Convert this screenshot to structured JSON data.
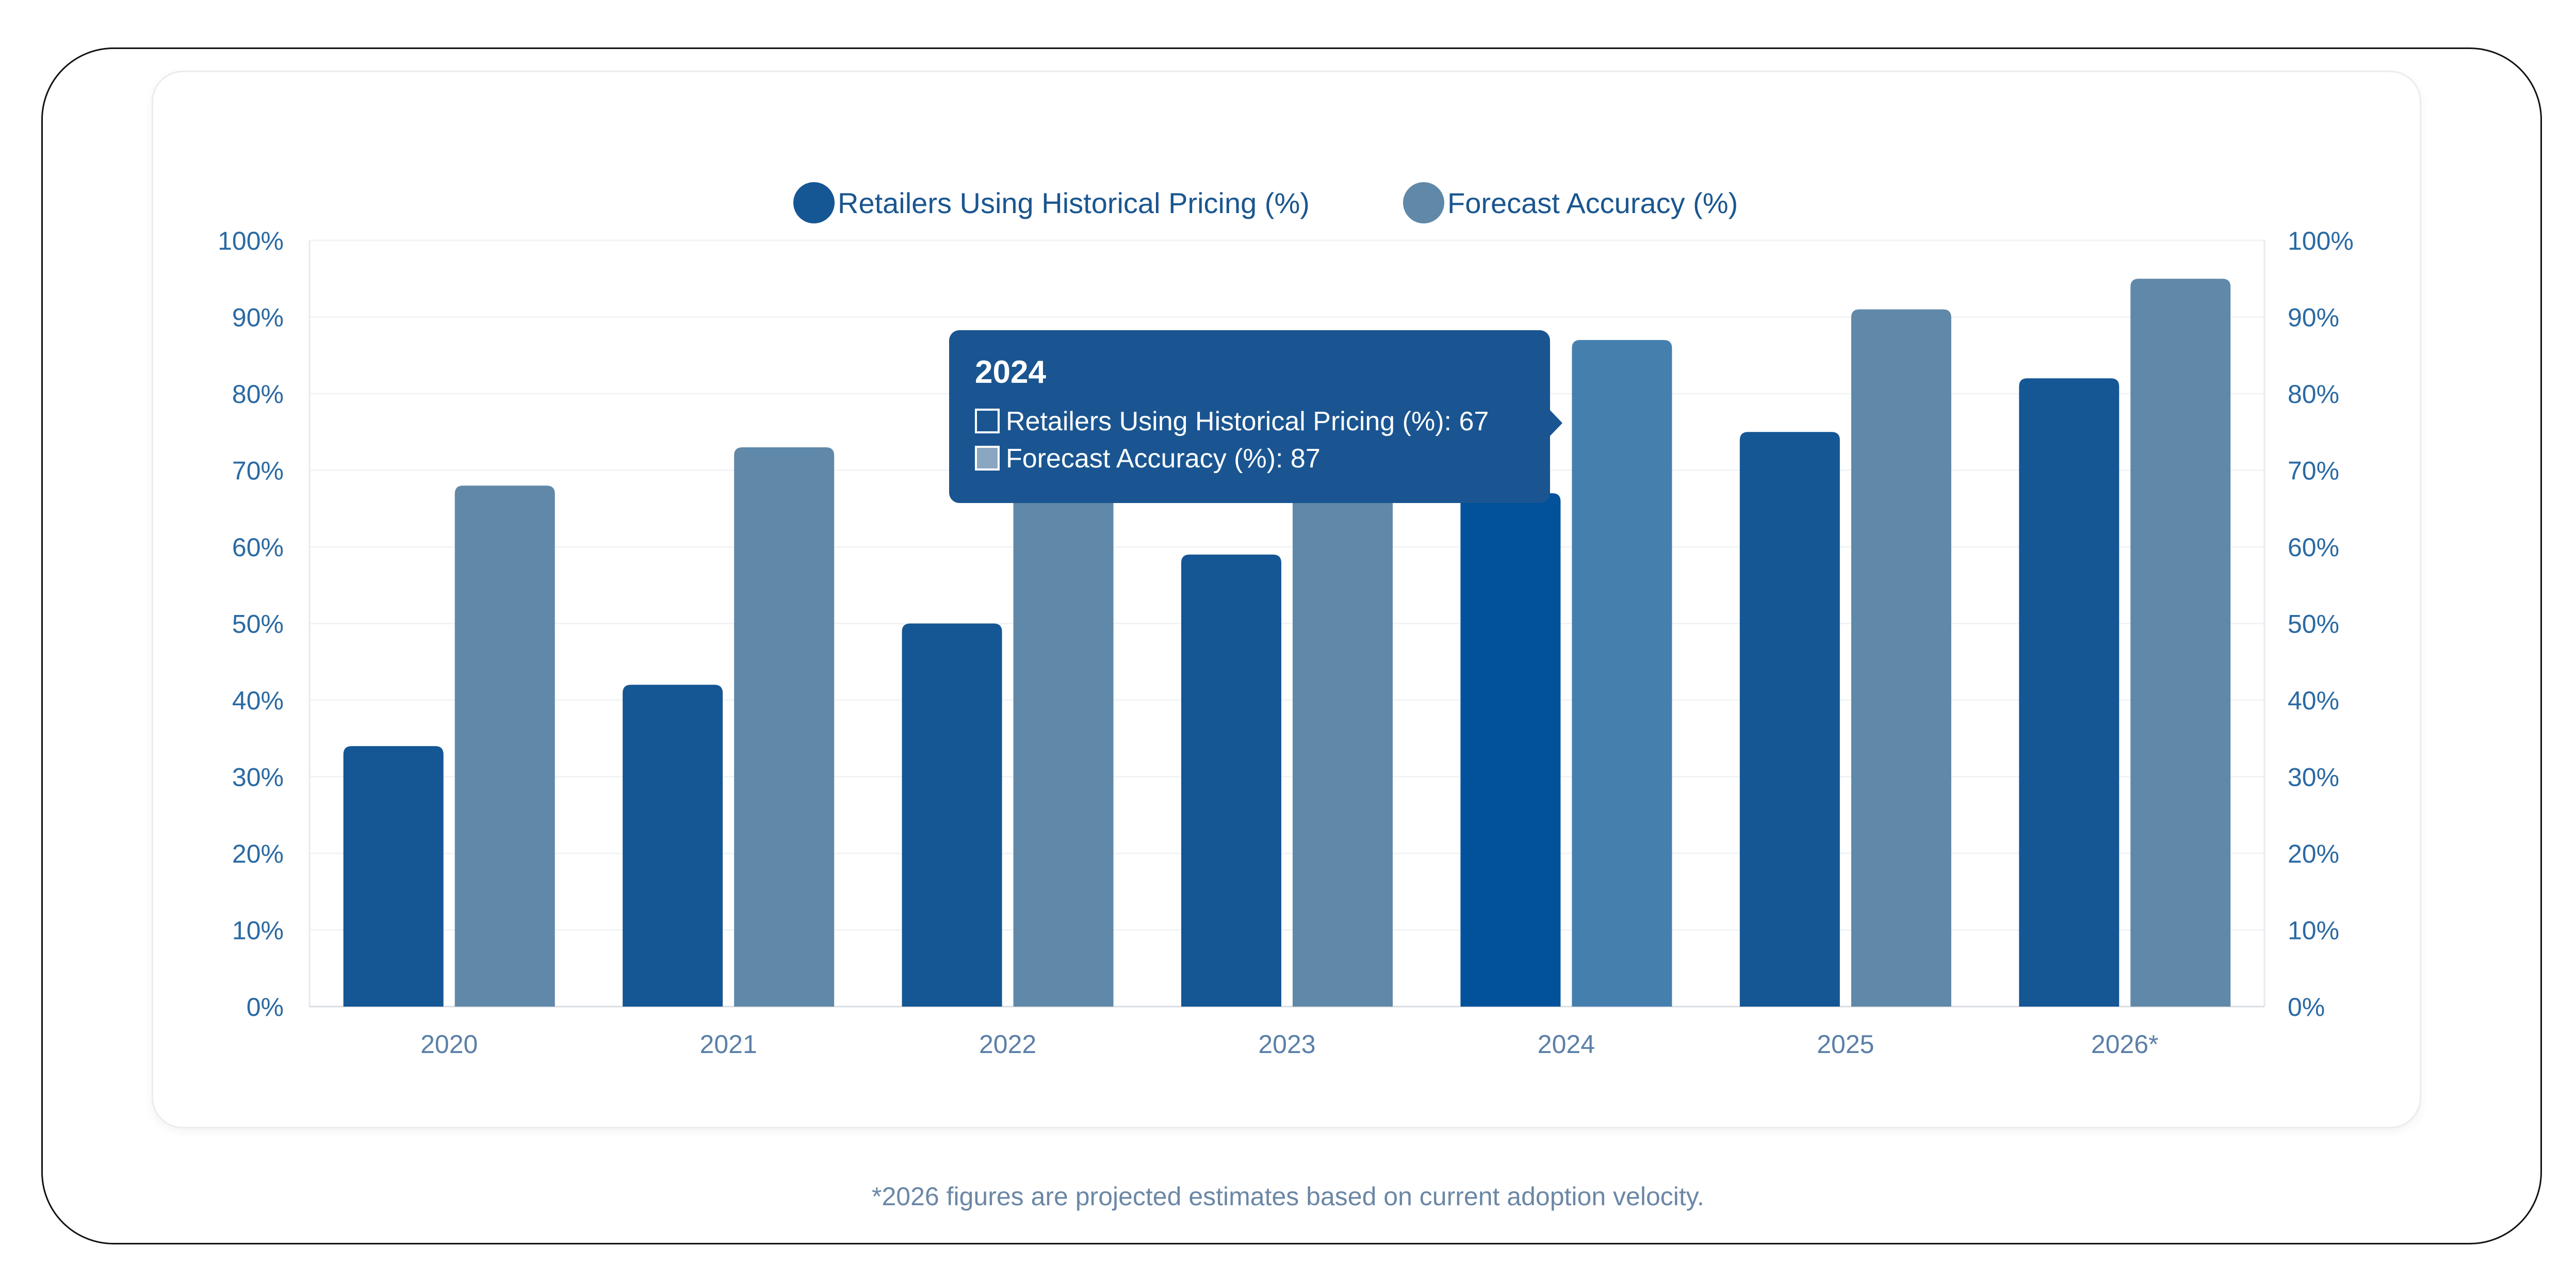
{
  "colors": {
    "series1": "#155694",
    "series2": "#6088a8",
    "series1_active": "#01529a",
    "series2_active": "#457fae",
    "tooltip_bg": "#1a5591",
    "tooltip_text": "#ffffff",
    "axis_text": "#2b6aa3",
    "grid": "#f1f3f6"
  },
  "chart_data": {
    "type": "bar",
    "categories": [
      "2020",
      "2021",
      "2022",
      "2023",
      "2024",
      "2025",
      "2026*"
    ],
    "series": [
      {
        "name": "Retailers Using Historical Pricing (%)",
        "values": [
          34,
          42,
          50,
          59,
          67,
          75,
          82
        ]
      },
      {
        "name": "Forecast Accuracy (%)",
        "values": [
          68,
          73,
          77,
          81,
          87,
          91,
          95
        ]
      }
    ],
    "ylim": [
      0,
      100
    ],
    "yticks": [
      "0%",
      "10%",
      "20%",
      "30%",
      "40%",
      "50%",
      "60%",
      "70%",
      "80%",
      "90%",
      "100%"
    ],
    "right_axis_ticks": [
      "0%",
      "10%",
      "20%",
      "30%",
      "40%",
      "50%",
      "60%",
      "70%",
      "80%",
      "90%",
      "100%"
    ],
    "grid": true,
    "legend_position": "top-center",
    "tooltip": {
      "category": "2024",
      "title": "2024",
      "lines": [
        "Retailers Using Historical Pricing (%): 67",
        "Forecast Accuracy (%): 87"
      ]
    }
  },
  "footnote": "*2026 figures are projected estimates based on current adoption velocity."
}
